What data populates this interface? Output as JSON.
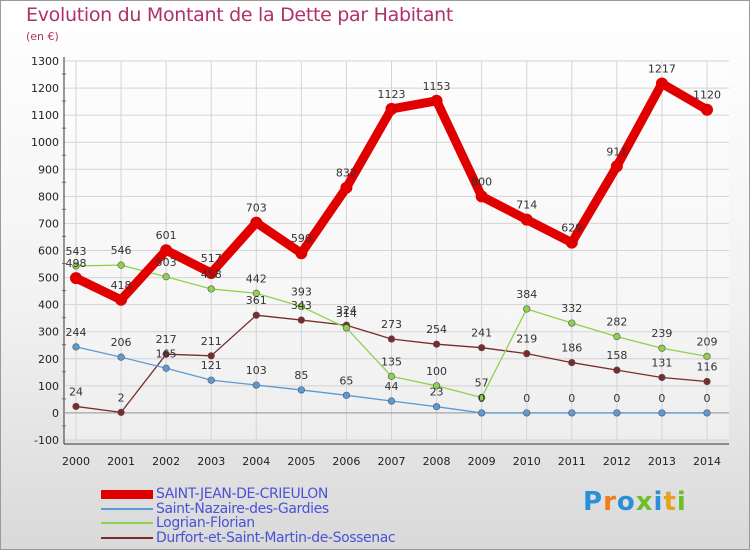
{
  "title": "Evolution du Montant de la Dette par Habitant",
  "unit": "(en €)",
  "logo": {
    "text": "Proxiti",
    "letters": [
      "P",
      "r",
      "o",
      "x",
      "i",
      "t",
      "i"
    ],
    "colors": [
      "#2a8fd9",
      "#f07c1a",
      "#2a8fd9",
      "#6cbf2a",
      "#2a8fd9",
      "#e8a020",
      "#6cbf2a"
    ]
  },
  "chart_data": {
    "type": "line",
    "title": "Evolution du Montant de la Dette par Habitant",
    "ylabel": "(en €)",
    "ylim": [
      -100,
      1300
    ],
    "yticks": [
      -100,
      0,
      100,
      200,
      300,
      400,
      500,
      600,
      700,
      800,
      900,
      1000,
      1100,
      1200,
      1300
    ],
    "x": [
      2000,
      2001,
      2002,
      2003,
      2004,
      2005,
      2006,
      2007,
      2008,
      2009,
      2010,
      2011,
      2012,
      2013,
      2014
    ],
    "grid": true,
    "legend_position": "bottom-left",
    "series": [
      {
        "name": "SAINT-JEAN-DE-CRIEULON",
        "color": "#e00000",
        "width": "thick",
        "values": [
          498,
          418,
          601,
          517,
          703,
          590,
          832,
          1123,
          1153,
          800,
          714,
          629,
          911,
          1217,
          1120
        ]
      },
      {
        "name": "Saint-Nazaire-des-Gardies",
        "color": "#5b9bd5",
        "width": "thin",
        "values": [
          244,
          206,
          165,
          121,
          103,
          85,
          65,
          44,
          23,
          0,
          0,
          0,
          0,
          0,
          0
        ]
      },
      {
        "name": "Logrian-Florian",
        "color": "#8fd14f",
        "width": "thin",
        "values": [
          543,
          546,
          503,
          458,
          442,
          393,
          314,
          135,
          100,
          57,
          384,
          332,
          282,
          239,
          209
        ]
      },
      {
        "name": "Durfort-et-Saint-Martin-de-Sossenac",
        "color": "#7b2b2b",
        "width": "thin",
        "values": [
          24,
          2,
          217,
          211,
          361,
          343,
          324,
          273,
          254,
          241,
          219,
          186,
          158,
          131,
          116
        ]
      }
    ]
  }
}
